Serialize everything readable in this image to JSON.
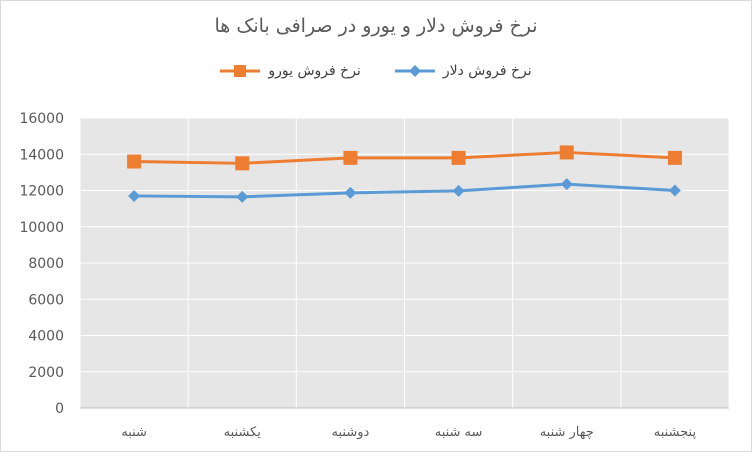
{
  "chart_data": {
    "type": "line",
    "title": "نرخ فروش دلار و یورو در صرافی بانک ها",
    "categories": [
      "شنبه",
      "یکشنبه",
      "دوشنبه",
      "سه شنبه",
      "چهار شنبه",
      "پنجشنبه"
    ],
    "series": [
      {
        "name": "نرخ فروش دلار",
        "values": [
          11700,
          11650,
          11870,
          11980,
          12350,
          12000
        ],
        "color": "#5b9bd5",
        "marker": "diamond"
      },
      {
        "name": "نرخ فروش یورو",
        "values": [
          13600,
          13500,
          13800,
          13800,
          14100,
          13800
        ],
        "color": "#ed7d31",
        "marker": "square"
      }
    ],
    "ylim": [
      0,
      16000
    ],
    "yticks": [
      0,
      2000,
      4000,
      6000,
      8000,
      10000,
      12000,
      14000,
      16000
    ],
    "grid": true,
    "legend": "top"
  }
}
